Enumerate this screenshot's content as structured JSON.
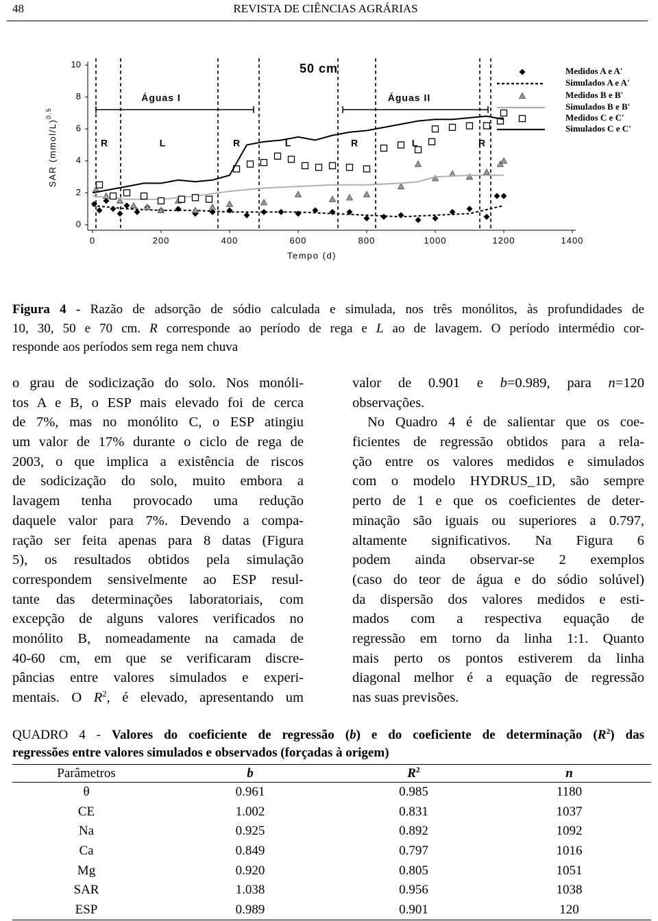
{
  "header": {
    "page_number": "48",
    "journal": "REVISTA DE CIÊNCIAS AGRÁRIAS"
  },
  "chart_data": {
    "type": "line",
    "title": "50 cm",
    "xlabel": "Tempo (d)",
    "ylabel": "SAR (mmol/L)",
    "ylabel_exponent": "0.5",
    "period_labels": [
      "Águas I",
      "Águas II"
    ],
    "phase_labels": [
      "R",
      "L",
      "R",
      "L",
      "R",
      "L",
      "R"
    ],
    "xlim": [
      0,
      1400
    ],
    "xticks": [
      0,
      200,
      400,
      600,
      800,
      1000,
      1200,
      1400
    ],
    "ylim": [
      0,
      10
    ],
    "yticks": [
      0,
      2,
      4,
      6,
      8,
      10
    ],
    "grid": false,
    "legend": "upper right",
    "series": [
      {
        "name": "Medidos A e A'",
        "color": "#000000",
        "marker": "diamond",
        "x": [
          5,
          20,
          40,
          60,
          80,
          100,
          130,
          160,
          200,
          250,
          300,
          350,
          400,
          450,
          500,
          550,
          600,
          650,
          700,
          750,
          800,
          850,
          900,
          950,
          1000,
          1050,
          1100,
          1150,
          1180,
          1200
        ],
        "values": [
          1.3,
          0.9,
          1.5,
          1.0,
          0.7,
          1.2,
          0.8,
          1.1,
          0.9,
          1.0,
          0.7,
          0.8,
          0.9,
          0.6,
          0.8,
          0.8,
          0.7,
          0.9,
          0.8,
          0.8,
          0.4,
          0.5,
          0.6,
          0.3,
          0.4,
          0.8,
          1.0,
          0.5,
          1.8,
          1.8
        ]
      },
      {
        "name": "Simulados A e A'",
        "color": "#000000",
        "marker": "none",
        "dash": true,
        "x": [
          0,
          100,
          200,
          300,
          400,
          500,
          600,
          700,
          800,
          900,
          1000,
          1100,
          1200
        ],
        "values": [
          1.2,
          1.0,
          0.9,
          0.9,
          0.8,
          0.8,
          0.8,
          0.7,
          0.6,
          0.5,
          0.6,
          0.7,
          1.2
        ]
      },
      {
        "name": "Medidos B e B'",
        "color": "#9a9a9a",
        "marker": "triangle",
        "x": [
          10,
          40,
          80,
          120,
          160,
          200,
          250,
          300,
          350,
          400,
          500,
          600,
          700,
          750,
          800,
          900,
          950,
          1000,
          1050,
          1100,
          1150,
          1190,
          1200
        ],
        "values": [
          2.2,
          1.8,
          1.5,
          1.2,
          1.1,
          0.9,
          1.5,
          0.9,
          1.1,
          1.3,
          1.4,
          1.9,
          1.6,
          1.7,
          1.9,
          2.4,
          3.8,
          2.9,
          3.2,
          3.0,
          3.3,
          3.8,
          4.0
        ]
      },
      {
        "name": "Simulados B e B'",
        "color": "#b0b0b0",
        "marker": "none",
        "x": [
          0,
          100,
          200,
          300,
          400,
          500,
          600,
          700,
          800,
          900,
          950,
          1000,
          1100,
          1200
        ],
        "values": [
          1.8,
          1.6,
          1.6,
          1.8,
          2.1,
          2.3,
          2.4,
          2.5,
          2.5,
          2.6,
          2.7,
          3.0,
          3.1,
          3.1
        ]
      },
      {
        "name": "Medidos C e C'",
        "color": "#000000",
        "marker": "square",
        "x": [
          20,
          60,
          100,
          150,
          200,
          260,
          300,
          340,
          420,
          460,
          500,
          540,
          580,
          620,
          660,
          700,
          750,
          800,
          850,
          900,
          950,
          990,
          1000,
          1050,
          1100,
          1150,
          1190,
          1200
        ],
        "values": [
          2.5,
          1.8,
          2.0,
          1.8,
          1.5,
          1.6,
          1.7,
          1.6,
          3.5,
          3.8,
          3.9,
          4.3,
          4.1,
          3.7,
          3.6,
          3.7,
          3.6,
          3.5,
          4.8,
          5.0,
          4.7,
          5.2,
          6.0,
          6.1,
          6.2,
          6.2,
          6.5,
          7.0
        ]
      },
      {
        "name": "Simulados C e C'",
        "color": "#000000",
        "marker": "none",
        "x": [
          0,
          50,
          100,
          150,
          200,
          250,
          300,
          350,
          400,
          450,
          500,
          550,
          600,
          650,
          700,
          750,
          800,
          850,
          900,
          950,
          1000,
          1050,
          1100,
          1150,
          1200
        ],
        "values": [
          2.0,
          2.2,
          2.4,
          2.6,
          2.6,
          2.8,
          2.7,
          2.8,
          3.1,
          5.0,
          5.2,
          5.3,
          5.5,
          5.3,
          5.6,
          5.8,
          5.9,
          6.1,
          6.3,
          6.5,
          6.6,
          6.6,
          6.7,
          6.8,
          6.6
        ]
      }
    ]
  },
  "caption": [
    [
      "Figura 4 - ",
      "Razão de adsorção de sódio calculada e simulada, nos três monólitos, às profundidades de"
    ],
    [
      "10, 30, 50 e 70 cm. ",
      "R",
      " corresponde ao período de rega e ",
      "L",
      " ao de lavagem. O período intermédio cor-"
    ],
    "responde aos períodos sem rega nem chuva"
  ],
  "body": {
    "left_lines": [
      "o grau de sodicização do solo. Nos monóli-",
      "tos A e B, o ESP mais elevado foi de cerca",
      "de 7%, mas no monólito C, o ESP atingiu",
      "um valor de 17% durante o ciclo de rega de",
      "2003, o que implica a existência de riscos",
      "de sodicização do solo, muito embora a",
      "lavagem tenha provocado uma redução",
      "daquele valor para 7%. Devendo a compa-",
      "ração ser feita apenas para 8 datas (Figura",
      "5), os resultados obtidos pela simulação",
      "correspondem sensivelmente ao ESP resul-",
      "tante das determinações laboratoriais, com",
      "excepção de alguns valores verificados no",
      "monólito B, nomeadamente na camada de",
      "40-60 cm, em que se verificaram discre-",
      "pâncias entre valores simulados e experi-",
      [
        "mentais. O ",
        "R",
        "2",
        ", é elevado, apresentando um"
      ]
    ],
    "right_lines": [
      [
        "valor de 0.901 e ",
        "b",
        "=0.989, para ",
        "n",
        "=120"
      ],
      "observações.",
      "No Quadro 4 é de salientar que os coe-",
      "ficientes de regressão obtidos para a rela-",
      "ção entre os valores medidos e simulados",
      "com o modelo HYDRUS_1D, são sempre",
      "perto de 1 e que os coeficientes de deter-",
      "minação são iguais ou superiores a 0.797,",
      "altamente significativos. Na Figura 6",
      "podem ainda observar-se 2 exemplos",
      "(caso do teor de água e do sódio solúvel)",
      "da dispersão dos valores medidos e esti-",
      "mados com a respectiva equação de",
      "regressão em torno da linha 1:1. Quanto",
      "mais perto os pontos estiverem da linha",
      "diagonal melhor é a equação de regressão",
      "nas suas previsões."
    ]
  },
  "table": {
    "caption": [
      [
        "QUADRO 4 - ",
        "Valores do coeficiente de regressão (",
        "b",
        ") e do coeficiente de determinação (",
        "R",
        "2",
        ") das"
      ],
      "regressões entre valores simulados e observados (forçadas à origem)"
    ],
    "headers": [
      "Parâmetros",
      "b",
      [
        "R",
        "2"
      ],
      "n"
    ],
    "rows": [
      [
        "θ",
        "0.961",
        "0.985",
        "1180"
      ],
      [
        "CE",
        "1.002",
        "0.831",
        "1037"
      ],
      [
        "Na",
        "0.925",
        "0.892",
        "1092"
      ],
      [
        "Ca",
        "0.849",
        "0.797",
        "1016"
      ],
      [
        "Mg",
        "0.920",
        "0.805",
        "1051"
      ],
      [
        "SAR",
        "1.038",
        "0.956",
        "1038"
      ],
      [
        "ESP",
        "0.989",
        "0.901",
        "120"
      ]
    ]
  }
}
